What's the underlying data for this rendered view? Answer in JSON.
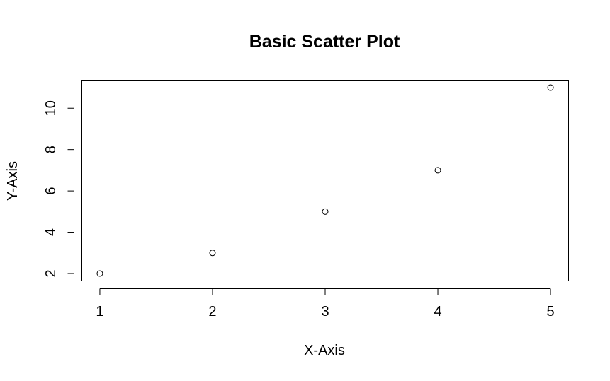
{
  "chart_data": {
    "type": "scatter",
    "title": "Basic Scatter Plot",
    "xlabel": "X-Axis",
    "ylabel": "Y-Axis",
    "x": [
      1,
      2,
      3,
      4,
      5
    ],
    "y": [
      2,
      3,
      5,
      7,
      11
    ],
    "xlim": [
      0.84,
      5.16
    ],
    "ylim": [
      1.64,
      11.36
    ],
    "xticks": [
      1,
      2,
      3,
      4,
      5
    ],
    "yticks": [
      2,
      4,
      6,
      8,
      10
    ],
    "xtick_labels": [
      "1",
      "2",
      "3",
      "4",
      "5"
    ],
    "ytick_labels": [
      "2",
      "4",
      "6",
      "8",
      "10"
    ],
    "grid": false,
    "marker": "open-circle",
    "colors": {
      "point": "#000000",
      "axes": "#000000",
      "background": "#ffffff"
    }
  }
}
